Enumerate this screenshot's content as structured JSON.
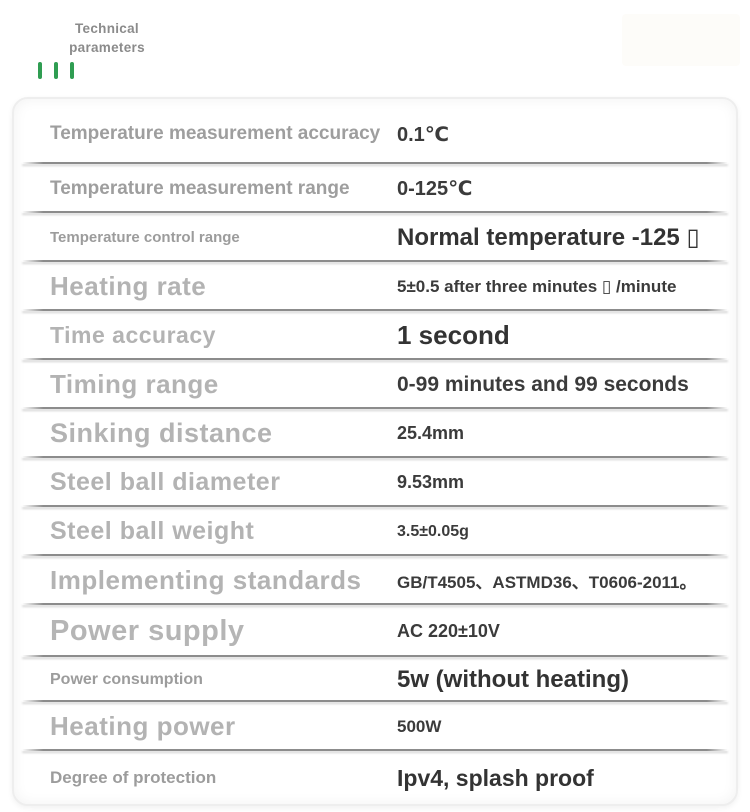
{
  "header": {
    "title": "Technical parameters",
    "accent_bar_count": 3
  },
  "colors": {
    "accent_green": "#2f9d52",
    "label_gray_small": "#9c9c9c",
    "label_gray_large": "#b3b3b3",
    "value_dark": "#3b3b3b"
  },
  "table": {
    "rows": [
      {
        "label": "Temperature measurement accuracy",
        "value": "0.1℃"
      },
      {
        "label": "Temperature measurement range",
        "value": "0-125℃"
      },
      {
        "label": "Temperature control range",
        "value": "Normal temperature -125 ▯"
      },
      {
        "label": "Heating rate",
        "value": "5±0.5 after three minutes ▯ /minute"
      },
      {
        "label": "Time accuracy",
        "value": "1 second"
      },
      {
        "label": "Timing range",
        "value": "0-99 minutes and 99 seconds"
      },
      {
        "label": "Sinking distance",
        "value": "25.4mm"
      },
      {
        "label": "Steel ball diameter",
        "value": "9.53mm"
      },
      {
        "label": "Steel ball weight",
        "value": "3.5±0.05g"
      },
      {
        "label": "Implementing standards",
        "value": "GB/T4505、ASTMD36、T0606-2011。"
      },
      {
        "label": "Power supply",
        "value": "AC 220±10V"
      },
      {
        "label": "Power consumption",
        "value": "5w (without heating)"
      },
      {
        "label": "Heating power",
        "value": "500W"
      },
      {
        "label": "Degree of protection",
        "value": "Ipv4, splash proof"
      }
    ]
  }
}
